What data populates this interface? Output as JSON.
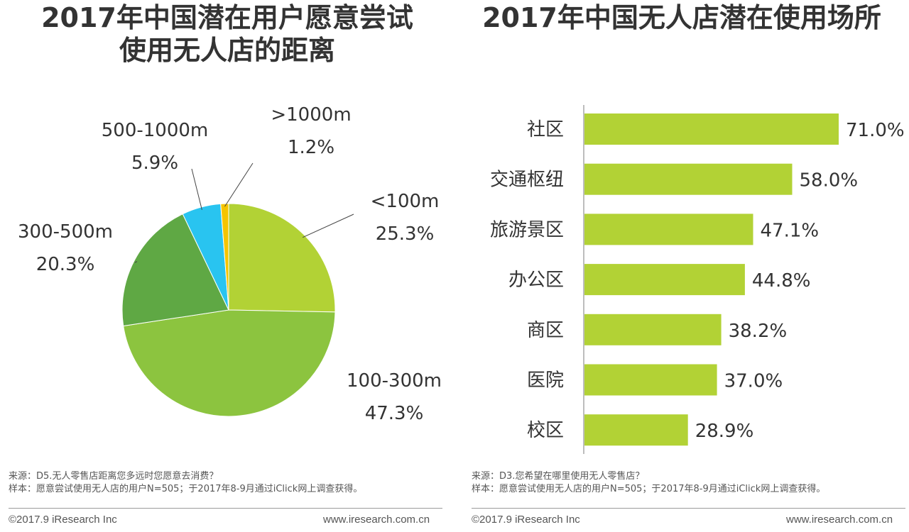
{
  "chart_data": [
    {
      "type": "pie",
      "title": "2017年中国潜在用户愿意尝试使用无人店的距离",
      "title_lines": [
        "2017年中国潜在用户愿意尝试",
        "使用无人店的距离"
      ],
      "slices": [
        {
          "label": "<100m",
          "value": 25.3,
          "value_label": "25.3%",
          "color": "#b2d235"
        },
        {
          "label": "100-300m",
          "value": 47.3,
          "value_label": "47.3%",
          "color": "#8cc43f"
        },
        {
          "label": "300-500m",
          "value": 20.3,
          "value_label": "20.3%",
          "color": "#5fa844"
        },
        {
          "label": "500-1000m",
          "value": 5.9,
          "value_label": "5.9%",
          "color": "#29c4f0"
        },
        {
          "label": ">1000m",
          "value": 1.2,
          "value_label": "1.2%",
          "color": "#f5c400"
        }
      ],
      "source": "来源：D5.无人零售店距离您多远时您愿意去消费？",
      "sample": "样本：愿意尝试使用无人店的用户N=505；于2017年8-9月通过iClick网上调查获得。",
      "copyright": "©2017.9 iResearch Inc",
      "website": "www.iresearch.com.cn"
    },
    {
      "type": "bar",
      "orientation": "horizontal",
      "title": "2017年中国无人店潜在使用场所",
      "categories": [
        "社区",
        "交通枢纽",
        "旅游景区",
        "办公区",
        "商区",
        "医院",
        "校区"
      ],
      "values": [
        71.0,
        58.0,
        47.1,
        44.8,
        38.2,
        37.0,
        28.9
      ],
      "value_labels": [
        "71.0%",
        "58.0%",
        "47.1%",
        "44.8%",
        "38.2%",
        "37.0%",
        "28.9%"
      ],
      "unit": "%",
      "xlim": [
        0,
        100
      ],
      "bar_color": "#b2d235",
      "source": "来源：D3.您希望在哪里使用无人零售店？",
      "sample": "样本：愿意尝试使用无人店的用户N=505；于2017年8-9月通过iClick网上调查获得。",
      "copyright": "©2017.9 iResearch Inc",
      "website": "www.iresearch.com.cn"
    }
  ]
}
